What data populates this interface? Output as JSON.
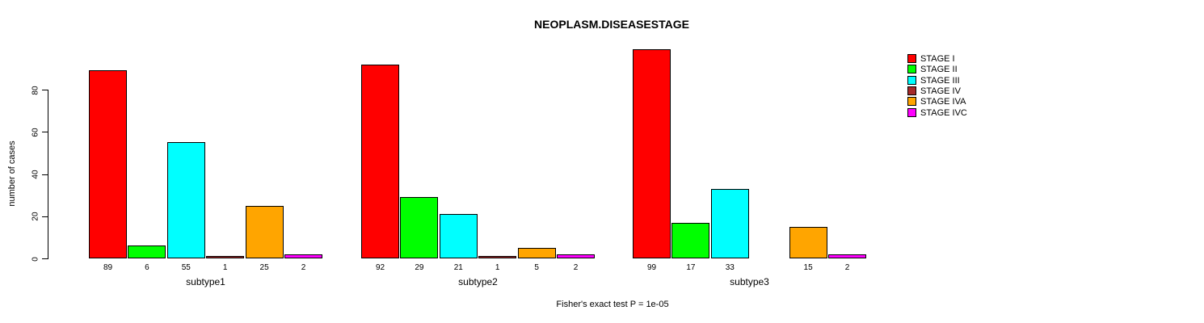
{
  "chart_data": {
    "type": "bar",
    "title": "NEOPLASM.DISEASESTAGE",
    "ylabel": "number of cases",
    "xlabel": "",
    "footer": "Fisher's exact test P = 1e-05",
    "yticks": [
      0,
      20,
      40,
      60,
      80
    ],
    "ylim": [
      0,
      100
    ],
    "grid": false,
    "legend_position": "right-outside",
    "legend": [
      {
        "label": "STAGE I",
        "color": "#ff0000"
      },
      {
        "label": "STAGE II",
        "color": "#00ff00"
      },
      {
        "label": "STAGE III",
        "color": "#00ffff"
      },
      {
        "label": "STAGE IV",
        "color": "#a52a2a"
      },
      {
        "label": "STAGE IVA",
        "color": "#ffa500"
      },
      {
        "label": "STAGE IVC",
        "color": "#ff00ff"
      }
    ],
    "panels": [
      {
        "xlabel": "subtype1",
        "values": [
          89,
          6,
          55,
          1,
          25,
          2
        ]
      },
      {
        "xlabel": "subtype2",
        "values": [
          92,
          29,
          21,
          1,
          5,
          2
        ]
      },
      {
        "xlabel": "subtype3",
        "values": [
          99,
          17,
          33,
          null,
          15,
          2
        ]
      }
    ]
  }
}
